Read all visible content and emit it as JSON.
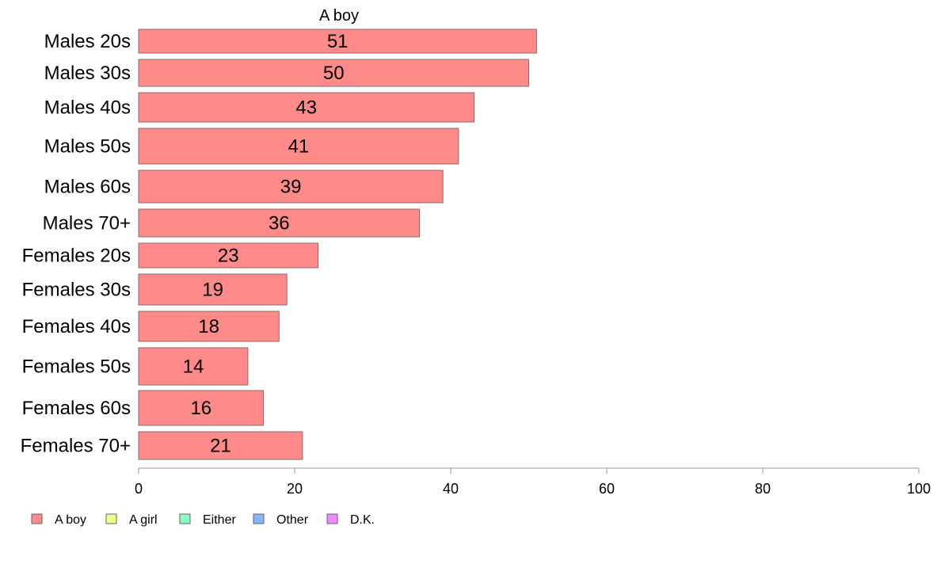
{
  "chart_data": {
    "type": "bar",
    "orientation": "horizontal",
    "title": "A boy",
    "xlabel": "",
    "ylabel": "",
    "xlim": [
      0,
      100
    ],
    "x_ticks": [
      "0",
      "20",
      "40",
      "60",
      "80",
      "100"
    ],
    "grid": false,
    "legend_position": "bottom-left",
    "categories": [
      "Males 20s",
      "Males 30s",
      "Males 40s",
      "Males 50s",
      "Males 60s",
      "Males 70+",
      "Females 20s",
      "Females 30s",
      "Females 40s",
      "Females 50s",
      "Females 60s",
      "Females 70+"
    ],
    "values": [
      51,
      50,
      43,
      41,
      39,
      36,
      23,
      19,
      18,
      14,
      16,
      21
    ],
    "value_labels": [
      "51",
      "50",
      "43",
      "41",
      "39",
      "36",
      "23",
      "19",
      "18",
      "14",
      "16",
      "21"
    ],
    "series": [
      {
        "name": "A boy",
        "color": "#ff8a8a"
      }
    ],
    "legend": [
      {
        "label": "A boy",
        "color": "#ff8a8a"
      },
      {
        "label": "A girl",
        "color": "#f2ff8a"
      },
      {
        "label": "Either",
        "color": "#8affbe"
      },
      {
        "label": "Other",
        "color": "#8ab4ff"
      },
      {
        "label": "D.K.",
        "color": "#f08aff"
      }
    ],
    "bar_color": "#ff8a8a",
    "bar_border_color": "#8c6b6b",
    "axis_color": "#999999"
  }
}
